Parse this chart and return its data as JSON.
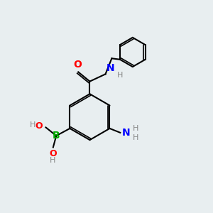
{
  "background_color": "#e8eef0",
  "bond_color": "#000000",
  "atom_colors": {
    "N": "#0000ff",
    "O": "#ff0000",
    "B": "#00aa00",
    "C": "#000000",
    "H": "#888888"
  },
  "figsize": [
    3.0,
    3.0
  ],
  "dpi": 100
}
